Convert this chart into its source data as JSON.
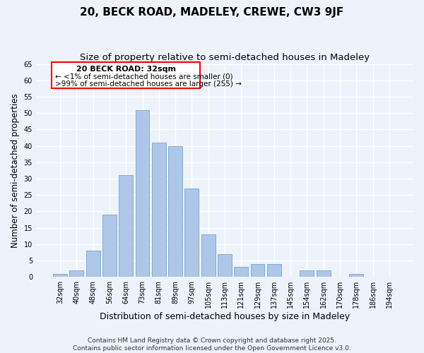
{
  "title": "20, BECK ROAD, MADELEY, CREWE, CW3 9JF",
  "subtitle": "Size of property relative to semi-detached houses in Madeley",
  "xlabel": "Distribution of semi-detached houses by size in Madeley",
  "ylabel": "Number of semi-detached properties",
  "bar_labels": [
    "32sqm",
    "40sqm",
    "48sqm",
    "56sqm",
    "64sqm",
    "73sqm",
    "81sqm",
    "89sqm",
    "97sqm",
    "105sqm",
    "113sqm",
    "121sqm",
    "129sqm",
    "137sqm",
    "145sqm",
    "154sqm",
    "162sqm",
    "170sqm",
    "178sqm",
    "186sqm",
    "194sqm"
  ],
  "bar_values": [
    1,
    2,
    8,
    19,
    31,
    51,
    41,
    40,
    27,
    13,
    7,
    3,
    4,
    4,
    0,
    2,
    2,
    0,
    1,
    0,
    0
  ],
  "bar_color": "#aec6e8",
  "bar_edge_color": "#7aafd4",
  "background_color": "#eef2fb",
  "grid_color": "#ffffff",
  "ylim": [
    0,
    65
  ],
  "yticks": [
    0,
    5,
    10,
    15,
    20,
    25,
    30,
    35,
    40,
    45,
    50,
    55,
    60,
    65
  ],
  "annotation_title": "20 BECK ROAD: 32sqm",
  "annotation_line1": "← <1% of semi-detached houses are smaller (0)",
  "annotation_line2": ">99% of semi-detached houses are larger (255) →",
  "footer_line1": "Contains HM Land Registry data © Crown copyright and database right 2025.",
  "footer_line2": "Contains public sector information licensed under the Open Government Licence v3.0.",
  "title_fontsize": 11,
  "subtitle_fontsize": 9.5,
  "xlabel_fontsize": 9,
  "ylabel_fontsize": 8.5,
  "tick_fontsize": 7,
  "annotation_title_fontsize": 8,
  "annotation_body_fontsize": 7.5,
  "footer_fontsize": 6.5
}
